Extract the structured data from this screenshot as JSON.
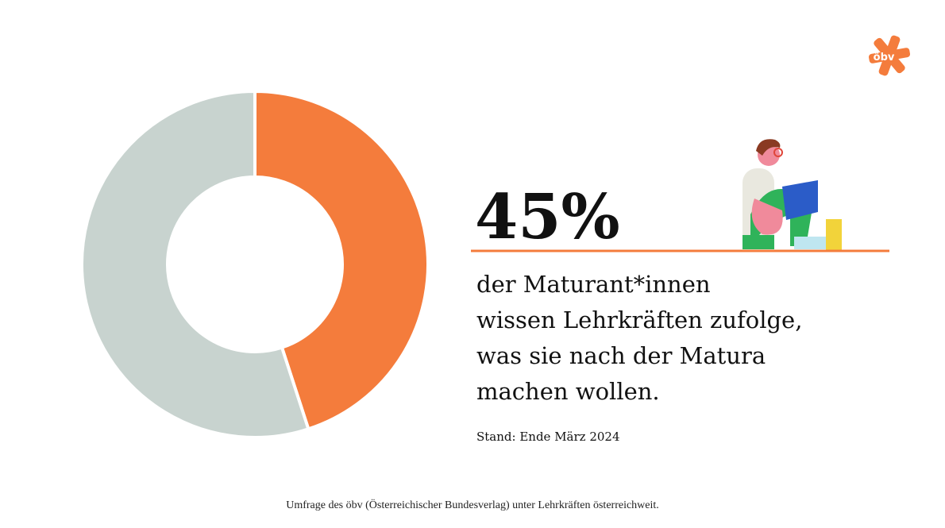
{
  "chart_data": {
    "type": "pie",
    "donut": true,
    "values": [
      45,
      55
    ],
    "value_labels": [
      "45%",
      null
    ],
    "colors": [
      "#f47c3c",
      "#c8d3cf"
    ],
    "description": [
      "der Maturant*innen",
      "wissen Lehrkräften zufolge,",
      "was sie nach der Matura",
      "machen wollen."
    ],
    "note": "Stand: Ende März 2024",
    "source": "Umfrage des öbv (Österreichischer Bundesverlag) unter Lehrkräften österreichweit.",
    "logo": "öbv"
  }
}
